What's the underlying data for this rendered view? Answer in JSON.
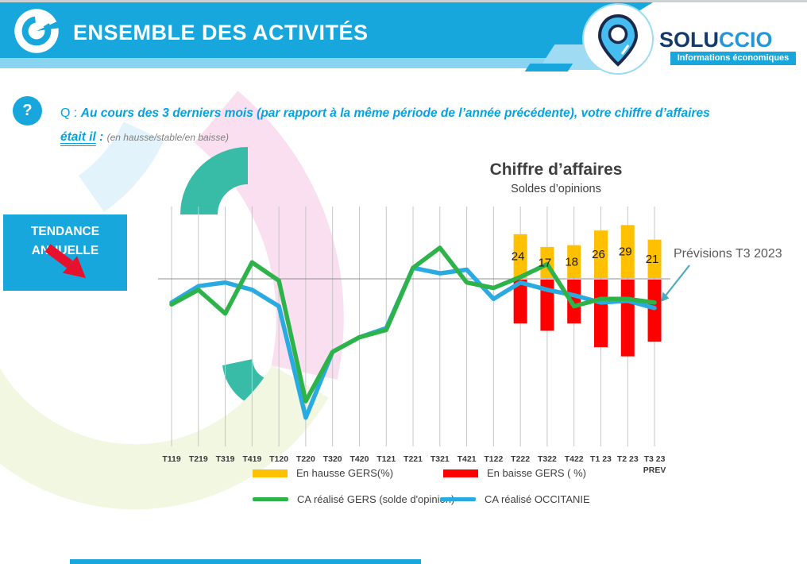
{
  "header": {
    "title": "ENSEMBLE DES ACTIVITÉS",
    "brand": {
      "part1": "SOLU",
      "part2": "CCIO",
      "tagline": "Informations économiques"
    }
  },
  "question": {
    "mark": "?",
    "prefix": "Q : ",
    "line1": "Au cours des 3 derniers mois (par rapport à la même période de l’année précédente),  votre chiffre d’affaires",
    "underlined": "était il",
    "colon": " : ",
    "hint": "(en hausse/stable/en baisse)"
  },
  "tendance": {
    "line1": "TENDANCE",
    "line2": "ANNUELLE"
  },
  "annotation": {
    "text": "Prévisions T3 2023"
  },
  "chart_data": {
    "type": "combo bar+line",
    "title": "Chiffre d’affaires",
    "subtitle": "Soldes d’opinions",
    "categories": [
      "T119",
      "T219",
      "T319",
      "T419",
      "T120",
      "T220",
      "T320",
      "T420",
      "T121",
      "T221",
      "T321",
      "T421",
      "T122",
      "T222",
      "T322",
      "T422",
      "T1 23",
      "T2 23",
      "T3 23"
    ],
    "last_category_note": "PREV",
    "grid": "vertical-only",
    "zero_line": true,
    "ylim": [
      -90,
      40
    ],
    "legend_position": "bottom",
    "bar_labels": [
      24,
      17,
      18,
      26,
      29,
      21
    ],
    "series": [
      {
        "name": "En hausse  GERS(%)",
        "type": "bar-up",
        "color": "#FFC000",
        "values": [
          null,
          null,
          null,
          null,
          null,
          null,
          null,
          null,
          null,
          null,
          null,
          null,
          null,
          24,
          17,
          18,
          26,
          29,
          21
        ]
      },
      {
        "name": "En baisse GERS ( %)",
        "type": "bar-down",
        "color": "#FF0000",
        "estimated_from_pixels": true,
        "values": [
          null,
          null,
          null,
          null,
          null,
          null,
          null,
          null,
          null,
          null,
          null,
          null,
          null,
          24,
          28,
          24,
          37,
          42,
          34
        ]
      },
      {
        "name": "CA réalisé GERS  (solde d'opinion)",
        "type": "line",
        "color": "#2DB34A",
        "values": [
          -14,
          -6,
          -19,
          9,
          -1,
          -67,
          -40,
          -32,
          -28,
          6,
          17,
          -2,
          -5,
          1,
          8,
          -15,
          -11,
          -11,
          -13
        ]
      },
      {
        "name": "CA réalisé OCCITANIE",
        "type": "line",
        "color": "#29ABE2",
        "values": [
          -13,
          -4,
          -2,
          -6,
          -15,
          -76,
          -40,
          -32,
          -27,
          6,
          3,
          5,
          -11,
          -2,
          -6,
          -9,
          -13,
          -12,
          -16
        ]
      }
    ]
  }
}
